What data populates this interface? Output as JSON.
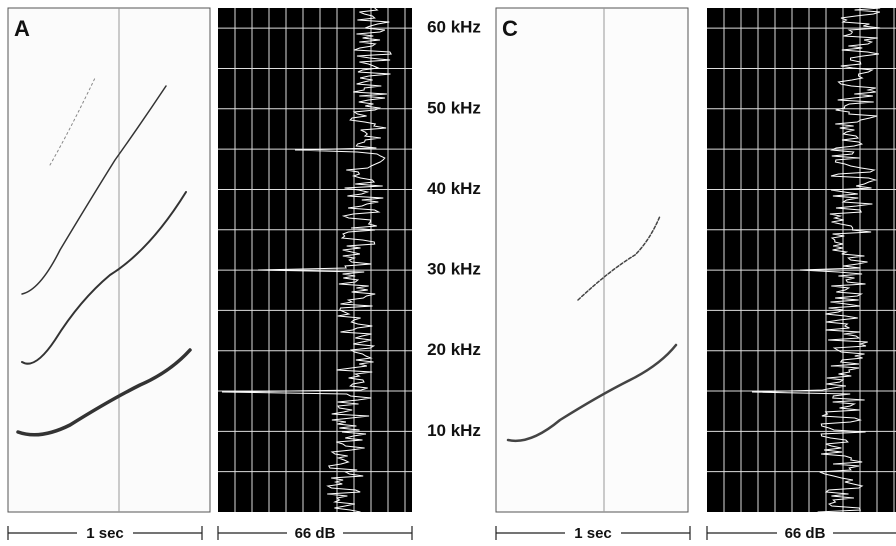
{
  "panels": [
    {
      "label": "A",
      "time_scale": "1 sec",
      "level_scale": "66 dB"
    },
    {
      "label": "C",
      "time_scale": "1 sec",
      "level_scale": "66 dB"
    }
  ],
  "frequency_axis": {
    "lim": [
      0,
      62.5
    ],
    "ticks": [
      {
        "value": 60,
        "label": "60 kHz"
      },
      {
        "value": 50,
        "label": "50 kHz"
      },
      {
        "value": 40,
        "label": "40 kHz"
      },
      {
        "value": 30,
        "label": "30 kHz"
      },
      {
        "value": 20,
        "label": "20 kHz"
      },
      {
        "value": 10,
        "label": "10 kHz"
      }
    ]
  }
}
